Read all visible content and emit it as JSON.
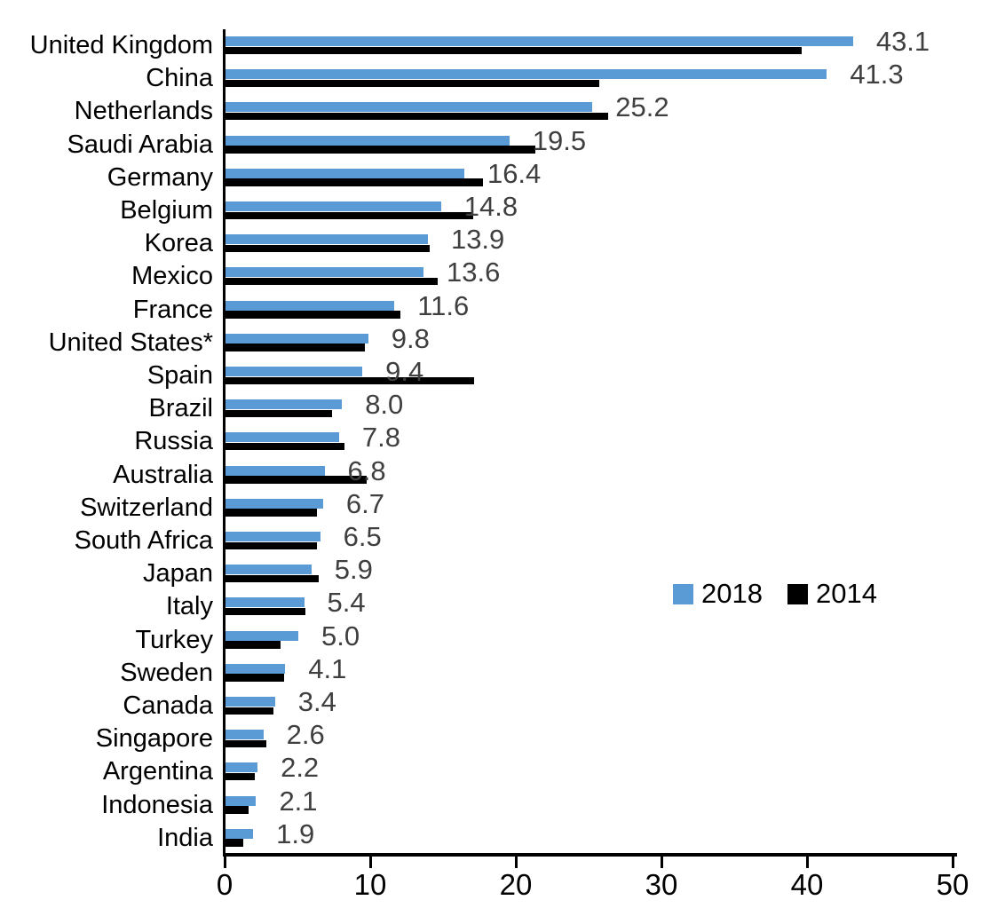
{
  "chart_data": {
    "type": "bar",
    "orientation": "horizontal",
    "title": "",
    "xlabel": "",
    "ylabel": "",
    "categories": [
      "United Kingdom",
      "China",
      "Netherlands",
      "Saudi Arabia",
      "Germany",
      "Belgium",
      "Korea",
      "Mexico",
      "France",
      "United States*",
      "Spain",
      "Brazil",
      "Russia",
      "Australia",
      "Switzerland",
      "South Africa",
      "Japan",
      "Italy",
      "Turkey",
      "Sweden",
      "Canada",
      "Singapore",
      "Argentina",
      "Indonesia",
      "India"
    ],
    "series": [
      {
        "name": "2018",
        "color": "#5B9BD5",
        "data_labels_shown": true,
        "values": [
          43.1,
          41.3,
          25.2,
          19.5,
          16.4,
          14.8,
          13.9,
          13.6,
          11.6,
          9.8,
          9.4,
          8.0,
          7.8,
          6.8,
          6.7,
          6.5,
          5.9,
          5.4,
          5.0,
          4.1,
          3.4,
          2.6,
          2.2,
          2.1,
          1.9
        ]
      },
      {
        "name": "2014",
        "color": "#000000",
        "data_labels_shown": false,
        "values": [
          39.6,
          25.7,
          26.3,
          21.3,
          17.7,
          17.0,
          14.0,
          14.6,
          12.0,
          9.6,
          17.1,
          7.3,
          8.2,
          9.7,
          6.3,
          6.3,
          6.4,
          5.5,
          3.8,
          4.0,
          3.3,
          2.8,
          2.0,
          1.6,
          1.2
        ]
      }
    ],
    "value_labels": [
      "43.1",
      "41.3",
      "25.2",
      "19.5",
      "16.4",
      "14.8",
      "13.9",
      "13.6",
      "11.6",
      "9.8",
      "9.4",
      "8.0",
      "7.8",
      "6.8",
      "6.7",
      "6.5",
      "5.9",
      "5.4",
      "5.0",
      "4.1",
      "3.4",
      "2.6",
      "2.2",
      "2.1",
      "1.9"
    ],
    "x_axis": {
      "min": 0,
      "max": 50,
      "ticks": [
        0,
        10,
        20,
        30,
        40,
        50
      ]
    },
    "legend": {
      "position": "middle-right",
      "entries": [
        "2018",
        "2014"
      ]
    },
    "grid": false,
    "colors": {
      "value_label": "#3F3F3F",
      "axis": "#000000",
      "category_label": "#000000",
      "background": "#FFFFFF"
    }
  }
}
